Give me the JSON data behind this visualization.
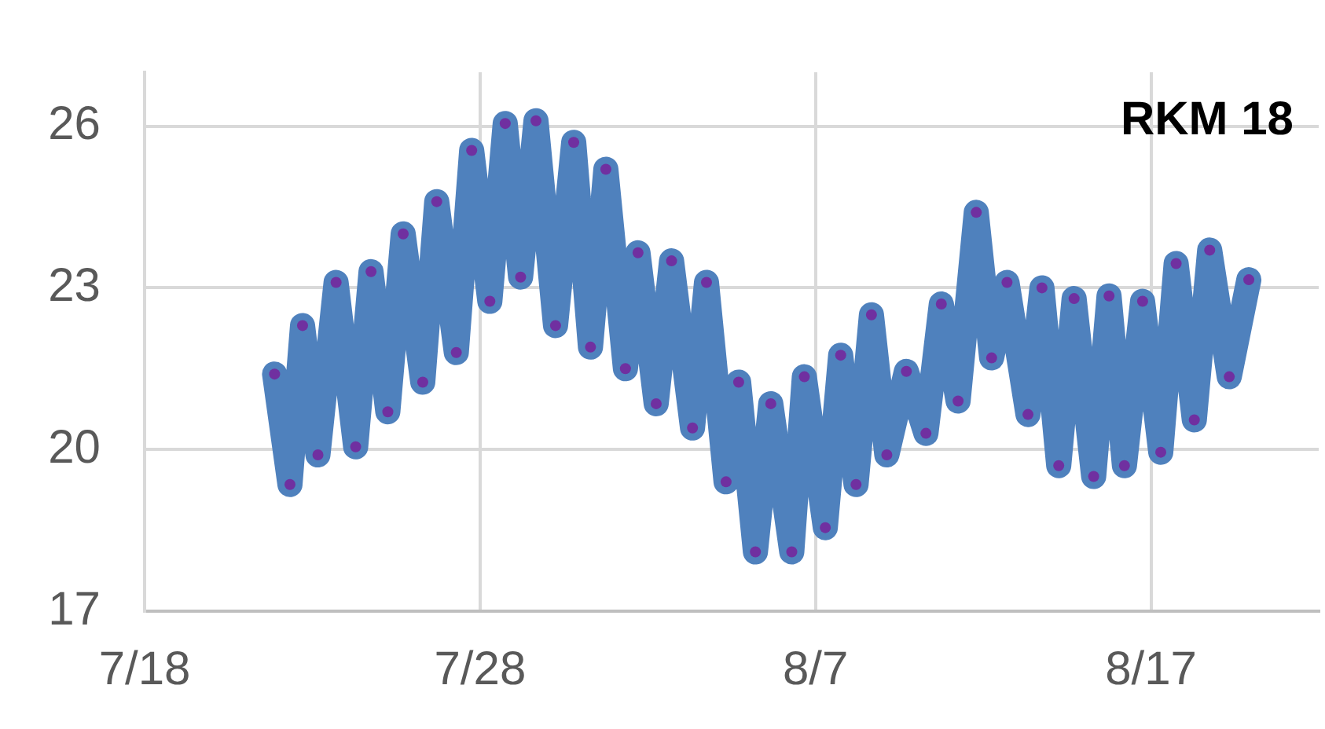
{
  "chart_data": {
    "type": "line",
    "title": "RKM 18",
    "x": [
      "--07-21T21:00",
      "--07-22T08:00",
      "--07-22T17:00",
      "--07-23T04:00",
      "--07-23T17:00",
      "--07-24T07:00",
      "--07-24T18:00",
      "--07-25T06:00",
      "--07-25T17:00",
      "--07-26T07:00",
      "--07-26T17:00",
      "--07-27T07:00",
      "--07-27T18:00",
      "--07-28T07:00",
      "--07-28T18:00",
      "--07-29T05:00",
      "--07-29T16:00",
      "--07-30T06:00",
      "--07-30T19:00",
      "--07-31T07:00",
      "--07-31T18:00",
      "--08-01T08:00",
      "--08-01T17:00",
      "--08-02T06:00",
      "--08-02T17:00",
      "--08-03T08:00",
      "--08-03T18:00",
      "--08-04T08:00",
      "--08-04T17:00",
      "--08-05T05:00",
      "--08-05T16:00",
      "--08-06T07:00",
      "--08-06T16:00",
      "--08-07T07:00",
      "--08-07T18:00",
      "--08-08T05:00",
      "--08-08T16:00",
      "--08-09T03:00",
      "--08-09T17:00",
      "--08-10T07:00",
      "--08-10T18:00",
      "--08-11T06:00",
      "--08-11T19:00",
      "--08-12T06:00",
      "--08-12T17:00",
      "--08-13T08:00",
      "--08-13T18:00",
      "--08-14T06:00",
      "--08-14T17:00",
      "--08-15T07:00",
      "--08-15T18:00",
      "--08-16T05:00",
      "--08-16T18:00",
      "--08-17T07:00",
      "--08-17T18:00",
      "--08-18T07:00",
      "--08-18T18:00",
      "--08-19T08:00",
      "--08-19T22:00"
    ],
    "series": [
      {
        "color": "#4f81bd",
        "marker": "none",
        "values": [
          21.4,
          19.35,
          22.3,
          19.9,
          23.1,
          20.05,
          23.3,
          20.7,
          24.0,
          21.25,
          24.6,
          21.8,
          25.55,
          22.75,
          26.05,
          23.2,
          26.1,
          22.3,
          25.7,
          21.9,
          25.2,
          21.5,
          23.65,
          20.85,
          23.5,
          20.4,
          23.1,
          19.4,
          21.25,
          18.1,
          20.85,
          18.1,
          21.35,
          18.55,
          21.75,
          19.35,
          22.5,
          19.9,
          21.45,
          20.3,
          22.7,
          20.9,
          24.4,
          21.7,
          23.1,
          20.65,
          23.0,
          19.7,
          22.8,
          19.5,
          22.85,
          19.7,
          22.75,
          19.95,
          23.45,
          20.55,
          23.7,
          21.35,
          23.15
        ]
      },
      {
        "type": "scatter",
        "color": "#7030a0",
        "marker": "circle",
        "values": [
          21.4,
          19.35,
          22.3,
          19.9,
          23.1,
          20.05,
          23.3,
          20.7,
          24.0,
          21.25,
          24.6,
          21.8,
          25.55,
          22.75,
          26.05,
          23.2,
          26.1,
          22.3,
          25.7,
          21.9,
          25.2,
          21.5,
          23.65,
          20.85,
          23.5,
          20.4,
          23.1,
          19.4,
          21.25,
          18.1,
          20.85,
          18.1,
          21.35,
          18.55,
          21.75,
          19.35,
          22.5,
          19.9,
          21.45,
          20.3,
          22.7,
          20.9,
          24.4,
          21.7,
          23.1,
          20.65,
          23.0,
          19.7,
          22.8,
          19.5,
          22.85,
          19.7,
          22.75,
          19.95,
          23.45,
          20.55,
          23.7,
          21.35,
          23.15
        ]
      }
    ],
    "xlim": [
      "--07-18",
      "--08-22"
    ],
    "xticks": [
      {
        "value": "--07-18",
        "label": "7/18"
      },
      {
        "value": "--07-28",
        "label": "7/28"
      },
      {
        "value": "--08-07",
        "label": "8/7"
      },
      {
        "value": "--08-17",
        "label": "8/17"
      }
    ],
    "ylim": [
      17,
      27
    ],
    "yticks": [
      17,
      20,
      23,
      26
    ],
    "grid": true,
    "legend": false
  }
}
